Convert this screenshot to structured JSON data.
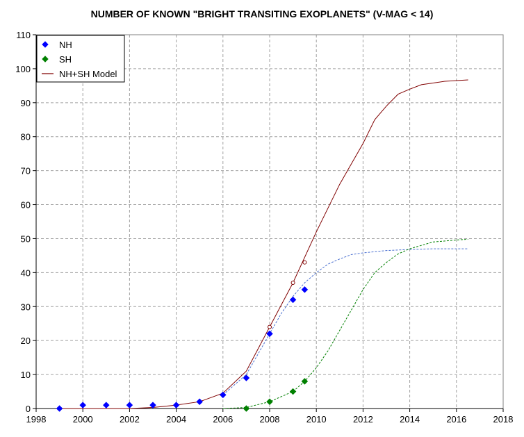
{
  "chart_data": {
    "type": "scatter",
    "title": "NUMBER OF KNOWN \"BRIGHT TRANSITING EXOPLANETS\" (V-MAG < 14)",
    "xlabel": "",
    "ylabel": "",
    "xlim": [
      1998,
      2018
    ],
    "ylim": [
      0,
      110
    ],
    "xticks": [
      "1998",
      "2000",
      "2002",
      "2004",
      "2006",
      "2008",
      "2010",
      "2012",
      "2014",
      "2016",
      "2018"
    ],
    "yticks": [
      "0",
      "10",
      "20",
      "30",
      "40",
      "50",
      "60",
      "70",
      "80",
      "90",
      "100",
      "110"
    ],
    "grid": true,
    "legend_position": "top-left",
    "legend": [
      "NH",
      "SH",
      "NH+SH Model"
    ],
    "series": [
      {
        "name": "NH",
        "kind": "points",
        "marker": "diamond",
        "color": "#0000ff",
        "x": [
          1999,
          2000,
          2001,
          2002,
          2003,
          2004,
          2005,
          2006,
          2007,
          2008,
          2009,
          2009.5
        ],
        "y": [
          0,
          1,
          1,
          1,
          1,
          1,
          2,
          4,
          9,
          22,
          32,
          35
        ]
      },
      {
        "name": "SH",
        "kind": "points",
        "marker": "diamond",
        "color": "#008000",
        "x": [
          2007,
          2008,
          2009,
          2009.5
        ],
        "y": [
          0,
          2,
          5,
          8
        ]
      },
      {
        "name": "NH+SH Model",
        "kind": "line",
        "color": "#800000",
        "x": [
          1999,
          2002,
          2003,
          2004,
          2005,
          2006,
          2007,
          2008,
          2009,
          2010,
          2011,
          2012,
          2012.5,
          2013,
          2013.5,
          2014,
          2014.5,
          2015,
          2015.5,
          2016,
          2016.5
        ],
        "y": [
          0,
          0,
          0.3,
          1,
          2,
          4.5,
          11,
          24,
          37,
          52,
          66,
          78,
          85,
          89,
          92.5,
          94,
          95.3,
          95.8,
          96.3,
          96.5,
          96.7
        ]
      },
      {
        "kind": "dashed-line",
        "color": "#4a6fd0",
        "x": [
          2006,
          2007,
          2008,
          2008.5,
          2009,
          2009.5,
          2010,
          2010.5,
          2011,
          2011.5,
          2012,
          2013,
          2014,
          2015,
          2016,
          2016.5
        ],
        "y": [
          4,
          10,
          22,
          28,
          33,
          37,
          40,
          42.5,
          44,
          45.3,
          45.8,
          46.5,
          46.8,
          47,
          47,
          47
        ]
      },
      {
        "kind": "dashed-line",
        "color": "#008000",
        "x": [
          2006,
          2007,
          2008,
          2009,
          2009.5,
          2010,
          2010.5,
          2011,
          2011.5,
          2012,
          2012.5,
          2013,
          2013.5,
          2014,
          2014.5,
          2015,
          2015.5,
          2016,
          2016.5
        ],
        "y": [
          0,
          0.3,
          2,
          5,
          8,
          12,
          17,
          23,
          29,
          35,
          40,
          43,
          45.5,
          47,
          48,
          49,
          49.3,
          49.6,
          49.8
        ]
      },
      {
        "name": "",
        "kind": "open-points",
        "marker": "circle",
        "color": "#800000",
        "x": [
          2008,
          2009,
          2009.5
        ],
        "y": [
          24,
          37,
          43
        ]
      }
    ]
  }
}
